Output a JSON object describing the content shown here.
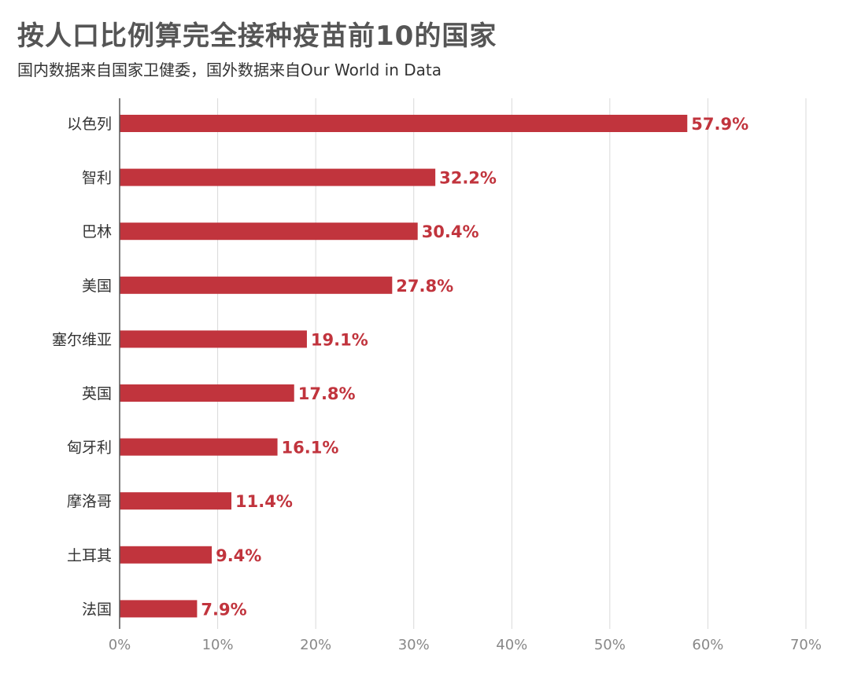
{
  "title": "按人口比例算完全接种疫苗前10的国家",
  "subtitle": "国内数据来自国家卫健委，国外数据来自Our World in Data",
  "colors": {
    "bar": "#c1343d",
    "label": "#c1343d",
    "grid": "#d9d9d9",
    "axis": "#555555"
  },
  "chart_data": {
    "type": "bar",
    "orientation": "horizontal",
    "categories": [
      "以色列",
      "智利",
      "巴林",
      "美国",
      "塞尔维亚",
      "英国",
      "匈牙利",
      "摩洛哥",
      "土耳其",
      "法国"
    ],
    "values": [
      57.9,
      32.2,
      30.4,
      27.8,
      19.1,
      17.8,
      16.1,
      11.4,
      9.4,
      7.9
    ],
    "value_labels": [
      "57.9%",
      "32.2%",
      "30.4%",
      "27.8%",
      "19.1%",
      "17.8%",
      "16.1%",
      "11.4%",
      "9.4%",
      "7.9%"
    ],
    "xticks": [
      0,
      10,
      20,
      30,
      40,
      50,
      60,
      70
    ],
    "xtick_labels": [
      "0%",
      "10%",
      "20%",
      "30%",
      "40%",
      "50%",
      "60%",
      "70%"
    ],
    "xlim": [
      0,
      70
    ],
    "grid": true
  }
}
